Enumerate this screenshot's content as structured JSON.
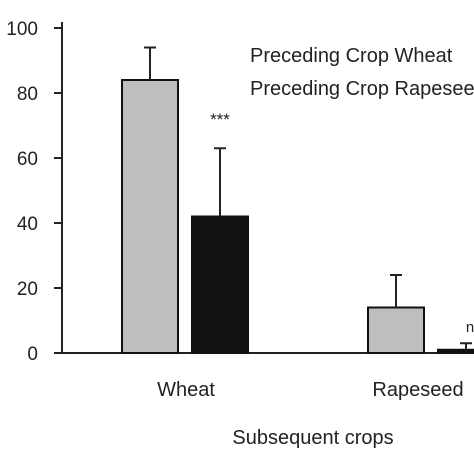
{
  "chart_data": {
    "type": "bar",
    "title": "",
    "xlabel": "Subsequent crops",
    "ylabel": "",
    "ylim": [
      0,
      100
    ],
    "yticks": [
      0,
      20,
      40,
      60,
      80,
      100
    ],
    "grid": false,
    "legend_position": "top-right",
    "categories": [
      "Wheat",
      "Rapeseed"
    ],
    "series": [
      {
        "name": "Preceding Crop Wheat",
        "color": "#bebebe",
        "values": [
          84,
          14
        ],
        "errors": [
          10,
          10
        ]
      },
      {
        "name": "Preceding Crop Rapeseed",
        "color": "#111111",
        "values": [
          42,
          1
        ],
        "errors": [
          21,
          2
        ]
      }
    ],
    "annotations": [
      {
        "category": "Wheat",
        "text": "***"
      },
      {
        "category": "Rapeseed",
        "text": "n.s."
      }
    ]
  }
}
